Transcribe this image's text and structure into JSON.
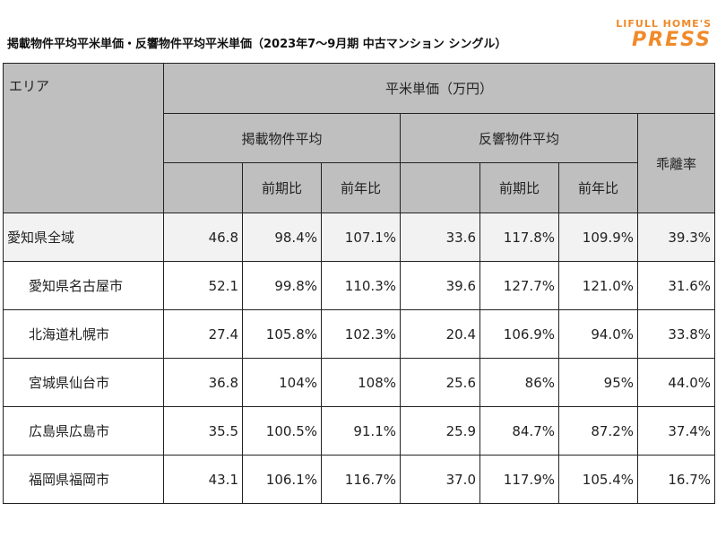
{
  "title": "掲載物件平均平米単価・反響物件平均平米単価（2023年7～9月期 中古マンション シングル）",
  "brand": {
    "top": "LIFULL HOME'S",
    "main": "PRESS",
    "color": "#f08a2a"
  },
  "headers": {
    "area": "エリア",
    "unit": "平米単価（万円）",
    "listing_avg": "掲載物件平均",
    "response_avg": "反響物件平均",
    "gap": "乖離率",
    "qoq": "前期比",
    "yoy": "前年比"
  },
  "rows": [
    {
      "area": "愛知県全域",
      "listing": "46.8",
      "listing_qoq": "98.4%",
      "listing_yoy": "107.1%",
      "response": "33.6",
      "response_qoq": "117.8%",
      "response_yoy": "109.9%",
      "gap": "39.3%"
    },
    {
      "area": "愛知県名古屋市",
      "listing": "52.1",
      "listing_qoq": "99.8%",
      "listing_yoy": "110.3%",
      "response": "39.6",
      "response_qoq": "127.7%",
      "response_yoy": "121.0%",
      "gap": "31.6%"
    },
    {
      "area": "北海道札幌市",
      "listing": "27.4",
      "listing_qoq": "105.8%",
      "listing_yoy": "102.3%",
      "response": "20.4",
      "response_qoq": "106.9%",
      "response_yoy": "94.0%",
      "gap": "33.8%"
    },
    {
      "area": "宮城県仙台市",
      "listing": "36.8",
      "listing_qoq": "104%",
      "listing_yoy": "108%",
      "response": "25.6",
      "response_qoq": "86%",
      "response_yoy": "95%",
      "gap": "44.0%"
    },
    {
      "area": "広島県広島市",
      "listing": "35.5",
      "listing_qoq": "100.5%",
      "listing_yoy": "91.1%",
      "response": "25.9",
      "response_qoq": "84.7%",
      "response_yoy": "87.2%",
      "gap": "37.4%"
    },
    {
      "area": "福岡県福岡市",
      "listing": "43.1",
      "listing_qoq": "106.1%",
      "listing_yoy": "116.7%",
      "response": "37.0",
      "response_qoq": "117.9%",
      "response_yoy": "105.4%",
      "gap": "16.7%"
    }
  ]
}
